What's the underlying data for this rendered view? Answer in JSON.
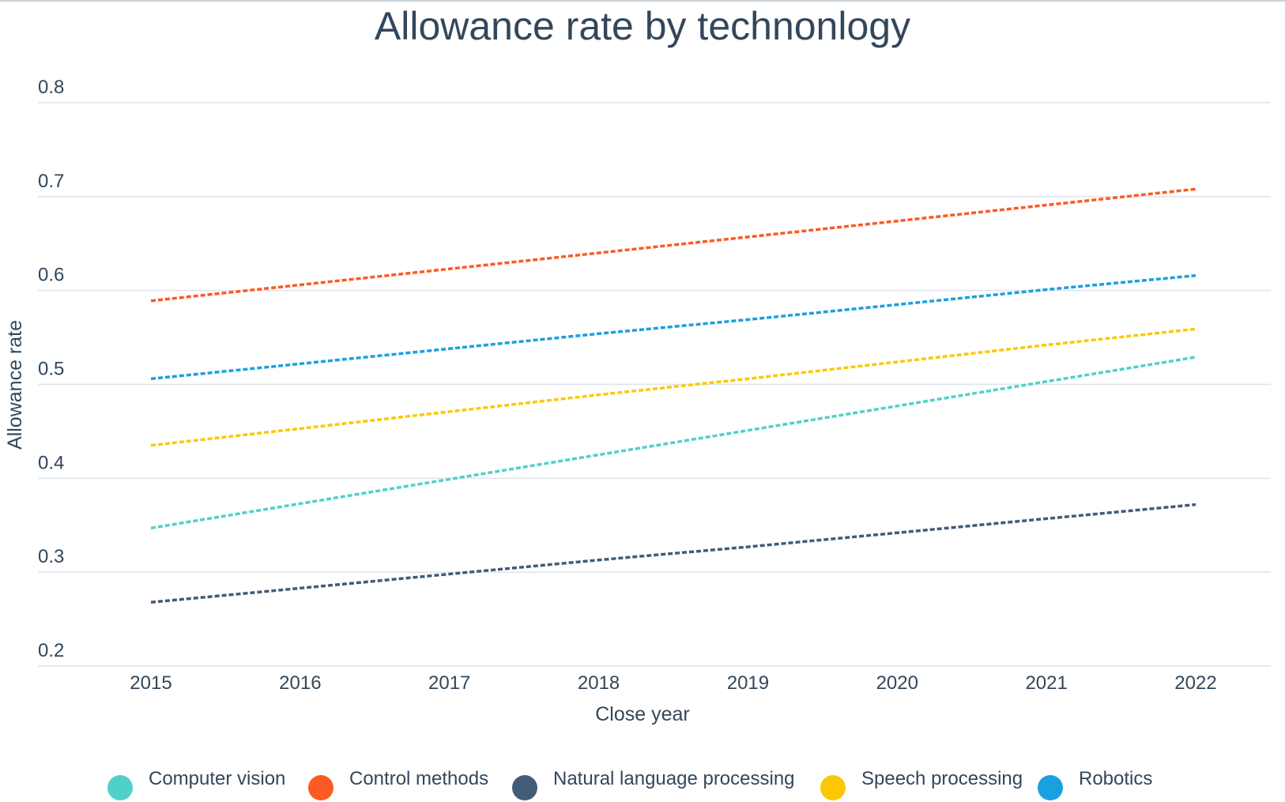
{
  "chart_data": {
    "type": "line",
    "title": "Allowance rate by technonlogy",
    "xlabel": "Close year",
    "ylabel": "Allowance rate",
    "x": [
      "2015",
      "2016",
      "2017",
      "2018",
      "2019",
      "2020",
      "2021",
      "2022"
    ],
    "ylim": [
      0.2,
      0.8
    ],
    "yticks": [
      "0.8",
      "0.7",
      "0.6",
      "0.5",
      "0.4",
      "0.3",
      "0.2"
    ],
    "grid": true,
    "legend_position": "bottom",
    "line_style": "dashed",
    "series": [
      {
        "name": "Computer vision",
        "color": "#4fd1c9",
        "values": [
          0.347,
          0.373,
          0.399,
          0.425,
          0.451,
          0.477,
          0.503,
          0.529
        ]
      },
      {
        "name": "Control methods",
        "color": "#fc5a24",
        "values": [
          0.589,
          0.606,
          0.623,
          0.64,
          0.657,
          0.674,
          0.691,
          0.708
        ]
      },
      {
        "name": "Natural language processing",
        "color": "#425b76",
        "values": [
          0.268,
          0.283,
          0.298,
          0.313,
          0.327,
          0.342,
          0.357,
          0.372
        ]
      },
      {
        "name": "Speech processing",
        "color": "#fcc805",
        "values": [
          0.435,
          0.453,
          0.471,
          0.489,
          0.506,
          0.524,
          0.542,
          0.559
        ]
      },
      {
        "name": "Robotics",
        "color": "#1aa0de",
        "values": [
          0.506,
          0.522,
          0.538,
          0.554,
          0.569,
          0.585,
          0.601,
          0.616
        ]
      }
    ]
  }
}
